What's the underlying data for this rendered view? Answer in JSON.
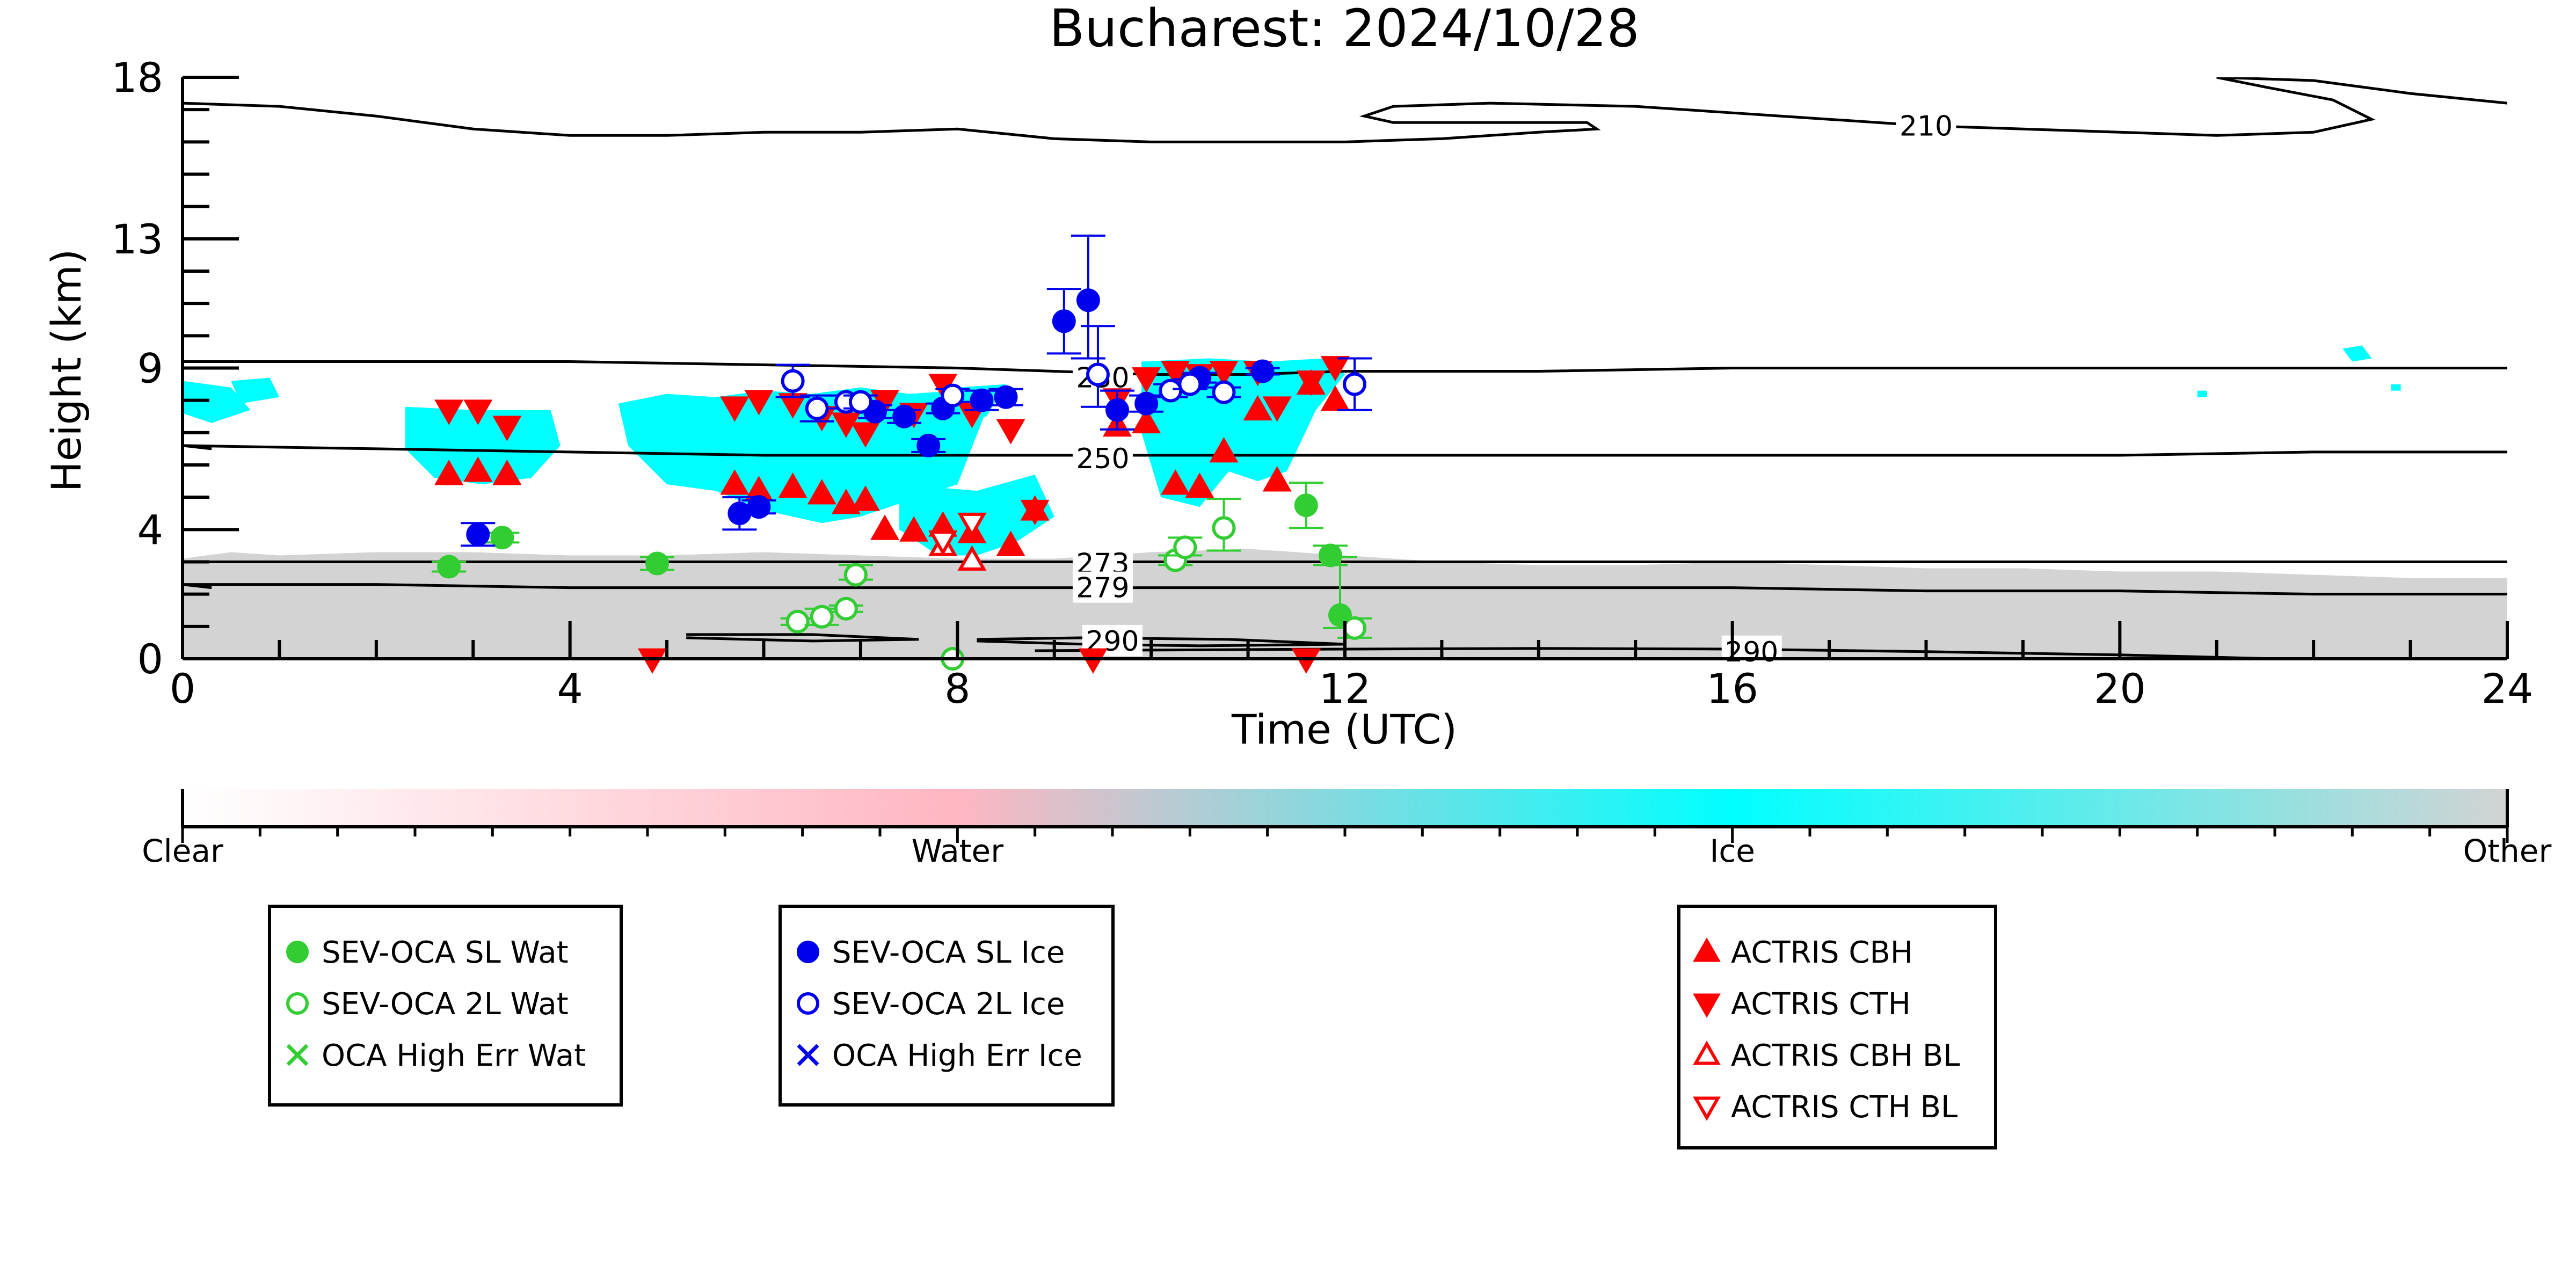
{
  "chart_data": {
    "type": "scatter",
    "title": "Bucharest: 2024/10/28",
    "xlabel": "Time (UTC)",
    "ylabel": "Height (km)",
    "xlim": [
      0,
      24
    ],
    "ylim": [
      0,
      18
    ],
    "x_ticks": [
      0,
      4,
      8,
      12,
      16,
      20,
      24
    ],
    "x_tick_labels": [
      "0",
      "4",
      "8",
      "12",
      "16",
      "20",
      "24"
    ],
    "y_ticks": [
      0,
      4,
      9,
      13,
      18
    ],
    "y_tick_labels": [
      "0",
      "4",
      "9",
      "13",
      "18"
    ],
    "grid": false,
    "colors": {
      "sl_water": "#32cd32",
      "sl_ice": "#0000ee",
      "actris": "#ff0000",
      "ice_mask": "#00ffff",
      "other_mask": "#d3d3d3",
      "contour": "#000000"
    },
    "contours": [
      {
        "label": "210",
        "x": [
          0,
          1,
          2,
          3,
          4,
          5,
          6,
          7,
          8,
          9,
          10,
          11,
          12,
          13,
          14,
          14.6,
          14.5,
          14,
          13,
          12.5,
          12.2,
          12.5,
          13.5,
          15,
          16,
          17,
          18,
          19,
          20,
          21,
          22,
          22.6,
          22.2,
          21.5,
          21,
          22,
          23,
          24
        ],
        "y": [
          17.2,
          17.1,
          16.8,
          16.4,
          16.2,
          16.2,
          16.3,
          16.3,
          16.4,
          16.1,
          16.0,
          16.0,
          16.0,
          16.1,
          16.3,
          16.4,
          16.6,
          16.6,
          16.6,
          16.6,
          16.8,
          17.1,
          17.2,
          17.1,
          16.9,
          16.7,
          16.5,
          16.4,
          16.3,
          16.2,
          16.3,
          16.7,
          17.3,
          17.7,
          18.0,
          17.9,
          17.5,
          17.2
        ]
      },
      {
        "label": "230",
        "x": [
          0,
          2,
          4,
          6,
          8,
          9,
          10,
          11,
          12,
          14,
          16,
          18,
          20,
          22,
          24
        ],
        "y": [
          9.2,
          9.2,
          9.2,
          9.1,
          9.0,
          8.9,
          8.8,
          8.8,
          8.9,
          8.9,
          9.0,
          9.0,
          9.0,
          9.0,
          9.0
        ]
      },
      {
        "label": "250",
        "x": [
          0,
          2,
          4,
          6,
          8,
          9,
          10,
          12,
          14,
          16,
          18,
          20,
          22,
          24
        ],
        "y": [
          6.6,
          6.5,
          6.4,
          6.3,
          6.3,
          6.3,
          6.3,
          6.3,
          6.3,
          6.3,
          6.3,
          6.3,
          6.4,
          6.4
        ]
      },
      {
        "label": "273",
        "x": [
          0,
          2,
          4,
          6,
          8,
          10,
          12,
          14,
          16,
          18,
          20,
          22,
          24
        ],
        "y": [
          3.0,
          3.0,
          3.0,
          3.0,
          3.0,
          3.0,
          3.0,
          3.0,
          3.0,
          3.0,
          3.0,
          3.0,
          3.0
        ]
      },
      {
        "label": "279",
        "x": [
          0,
          2,
          4,
          6,
          8,
          10,
          12,
          14,
          16,
          18,
          20,
          22,
          24
        ],
        "y": [
          2.3,
          2.3,
          2.2,
          2.2,
          2.2,
          2.2,
          2.2,
          2.2,
          2.2,
          2.1,
          2.1,
          2.0,
          2.0
        ]
      },
      {
        "label": "290",
        "x": [
          5.2,
          6.5,
          7.6,
          6.5,
          5.2
        ],
        "y": [
          0.75,
          0.75,
          0.6,
          0.55,
          0.65
        ]
      },
      {
        "label": "290",
        "x": [
          8.2,
          9.3,
          10.8,
          12.0,
          10.5,
          9.3,
          8.2
        ],
        "y": [
          0.6,
          0.65,
          0.6,
          0.45,
          0.4,
          0.45,
          0.55
        ]
      },
      {
        "label": "290",
        "x": [
          8.8,
          12,
          14,
          16,
          18,
          20,
          21.6
        ],
        "y": [
          0.25,
          0.3,
          0.32,
          0.3,
          0.22,
          0.12,
          0.0
        ]
      },
      {
        "label": "",
        "x": [
          0,
          0.3
        ],
        "y": [
          2.3,
          2.2
        ]
      },
      {
        "label": "",
        "x": [
          0,
          0.3
        ],
        "y": [
          6.6,
          6.5
        ]
      }
    ],
    "contour_labels": [
      {
        "text": "210",
        "x": 18.0,
        "y": 16.5
      },
      {
        "text": "230",
        "x": 9.5,
        "y": 8.7
      },
      {
        "text": "250",
        "x": 9.5,
        "y": 6.2
      },
      {
        "text": "273",
        "x": 9.5,
        "y": 2.95
      },
      {
        "text": "279",
        "x": 9.5,
        "y": 2.2
      },
      {
        "text": "290",
        "x": 9.6,
        "y": 0.55
      },
      {
        "text": "290",
        "x": 16.2,
        "y": 0.22
      }
    ],
    "mask_regions": [
      {
        "class": "Other",
        "x": [
          0,
          0.5,
          1,
          2,
          3,
          4,
          5,
          6,
          7,
          8,
          9,
          10,
          11,
          12,
          13,
          14,
          15,
          16,
          17,
          18,
          19,
          20,
          21,
          22,
          23,
          24,
          24,
          0
        ],
        "y": [
          3.1,
          3.3,
          3.2,
          3.3,
          3.3,
          3.2,
          3.2,
          3.3,
          3.2,
          3.1,
          3.1,
          3.3,
          3.4,
          3.2,
          3.0,
          2.9,
          2.9,
          3.0,
          2.9,
          2.8,
          2.8,
          2.7,
          2.7,
          2.6,
          2.5,
          2.5,
          0,
          0
        ]
      },
      {
        "class": "Ice",
        "x": [
          0,
          0.5,
          0.7,
          0.3,
          0
        ],
        "y": [
          8.6,
          8.4,
          7.7,
          7.3,
          7.6
        ]
      },
      {
        "class": "Ice",
        "x": [
          0.5,
          0.9,
          1.0,
          0.6
        ],
        "y": [
          8.6,
          8.7,
          8.1,
          7.9
        ]
      },
      {
        "class": "Ice",
        "x": [
          2.3,
          3.0,
          3.8,
          3.9,
          3.6,
          3.1,
          2.6,
          2.3
        ],
        "y": [
          7.8,
          7.7,
          7.7,
          6.6,
          5.6,
          5.4,
          5.6,
          6.5
        ]
      },
      {
        "class": "Ice",
        "x": [
          4.5,
          5.0,
          5.5,
          6.0,
          6.5,
          7.0,
          7.5,
          8.0,
          8.3,
          8.0,
          7.6,
          7.0,
          6.6,
          6.0,
          5.5,
          5.0,
          4.6
        ],
        "y": [
          7.9,
          8.2,
          8.1,
          8.3,
          8.2,
          8.4,
          8.2,
          8.3,
          7.7,
          5.4,
          5.0,
          4.4,
          4.2,
          4.6,
          5.2,
          5.4,
          6.6
        ]
      },
      {
        "class": "Ice",
        "x": [
          7.4,
          8.2,
          8.8,
          9.0,
          8.6,
          8.2,
          7.8,
          7.4
        ],
        "y": [
          5.4,
          5.2,
          5.7,
          4.4,
          3.6,
          3.2,
          3.2,
          4.0
        ]
      },
      {
        "class": "Ice",
        "x": [
          8.0,
          8.5,
          8.3,
          8.0
        ],
        "y": [
          8.4,
          8.5,
          7.5,
          7.4
        ]
      },
      {
        "class": "Ice",
        "x": [
          9.9,
          10.6,
          11.2,
          11.8,
          12.0,
          11.7,
          11.4,
          11.1,
          10.8,
          10.5,
          10.1,
          9.9
        ],
        "y": [
          9.2,
          9.3,
          9.2,
          9.3,
          8.8,
          7.7,
          5.8,
          5.5,
          5.8,
          4.7,
          5.0,
          7.0
        ]
      },
      {
        "class": "Ice",
        "x": [
          22.3,
          22.5,
          22.6,
          22.4
        ],
        "y": [
          9.6,
          9.7,
          9.3,
          9.2
        ]
      },
      {
        "class": "Ice",
        "x": [
          20.8,
          20.9,
          20.9,
          20.8
        ],
        "y": [
          8.3,
          8.3,
          8.1,
          8.1
        ]
      },
      {
        "class": "Ice",
        "x": [
          22.8,
          22.9,
          22.9,
          22.8
        ],
        "y": [
          8.5,
          8.5,
          8.3,
          8.3
        ]
      }
    ],
    "series": [
      {
        "name": "SEV-OCA SL Wat",
        "marker": "filled-circle",
        "color": "#32cd32",
        "x": [
          2.75,
          3.3,
          4.9,
          11.6,
          11.85,
          11.95
        ],
        "y": [
          2.85,
          3.75,
          2.95,
          4.75,
          3.2,
          1.35
        ],
        "err_low": [
          0.15,
          0.15,
          0.2,
          0.7,
          0.3,
          0.4
        ],
        "err_high": [
          0.15,
          0.15,
          0.2,
          0.7,
          0.3,
          1.8
        ]
      },
      {
        "name": "SEV-OCA 2L Wat",
        "marker": "open-circle",
        "color": "#32cd32",
        "x": [
          6.35,
          6.6,
          6.85,
          6.95,
          7.95,
          10.25,
          10.35,
          10.75,
          12.1
        ],
        "y": [
          1.15,
          1.3,
          1.55,
          2.6,
          0.0,
          3.05,
          3.45,
          4.05,
          0.95
        ],
        "err_low": [
          0.1,
          0.25,
          0.1,
          0.15,
          0,
          0.15,
          0.25,
          0.7,
          0.3
        ],
        "err_high": [
          0.1,
          0.25,
          0.1,
          0.3,
          0,
          0.15,
          0.3,
          0.9,
          0.3
        ]
      },
      {
        "name": "SEV-OCA SL Ice",
        "marker": "filled-circle",
        "color": "#0000ee",
        "x": [
          3.05,
          5.75,
          5.95,
          7.15,
          7.45,
          7.7,
          7.85,
          8.25,
          8.5,
          9.1,
          9.35,
          9.65,
          9.95,
          10.5,
          11.15
        ],
        "y": [
          3.85,
          4.5,
          4.7,
          7.65,
          7.5,
          6.6,
          7.75,
          8.0,
          8.1,
          10.45,
          11.1,
          7.7,
          7.9,
          8.7,
          8.9
        ],
        "err_low": [
          0.35,
          0.5,
          0.2,
          0.2,
          0.2,
          0.2,
          0.15,
          0.3,
          0.25,
          1.0,
          1.8,
          0.6,
          0.25,
          0.15,
          0.1
        ],
        "err_high": [
          0.35,
          0.5,
          0.2,
          0.2,
          0.2,
          0.2,
          0.15,
          0.3,
          0.25,
          1.0,
          2.0,
          0.6,
          0.25,
          0.15,
          0.1
        ]
      },
      {
        "name": "SEV-OCA 2L Ice",
        "marker": "open-circle",
        "color": "#0000ee",
        "x": [
          6.3,
          6.55,
          6.85,
          7.0,
          7.95,
          9.45,
          10.2,
          10.4,
          10.75,
          12.1
        ],
        "y": [
          8.6,
          7.75,
          7.95,
          7.95,
          8.15,
          8.8,
          8.3,
          8.5,
          8.25,
          8.5
        ],
        "err_low": [
          0.5,
          0.4,
          0.2,
          0.2,
          0.2,
          1.0,
          0.2,
          0.15,
          0.15,
          0.8
        ],
        "err_high": [
          0.5,
          0.4,
          0.2,
          0.2,
          0.2,
          1.5,
          0.2,
          0.15,
          0.15,
          0.8
        ]
      },
      {
        "name": "OCA High Err Wat",
        "marker": "x",
        "color": "#32cd32",
        "x": [],
        "y": []
      },
      {
        "name": "OCA High Err Ice",
        "marker": "x",
        "color": "#0000ee",
        "x": [],
        "y": []
      },
      {
        "name": "ACTRIS CBH",
        "marker": "filled-triangle-up",
        "color": "#ff0000",
        "x": [
          2.75,
          3.05,
          3.35,
          5.7,
          5.95,
          6.3,
          6.6,
          6.85,
          7.05,
          7.25,
          7.55,
          7.85,
          8.15,
          8.55,
          8.8,
          9.65,
          9.95,
          10.25,
          10.5,
          10.75,
          11.1,
          11.3,
          11.65,
          11.9
        ],
        "y": [
          5.7,
          5.8,
          5.7,
          5.4,
          5.2,
          5.3,
          5.1,
          4.8,
          4.9,
          4.0,
          3.95,
          4.1,
          3.9,
          3.5,
          4.6,
          7.2,
          7.3,
          5.4,
          5.3,
          6.4,
          7.7,
          5.5,
          8.5,
          8.0
        ],
        "err_low": [],
        "err_high": []
      },
      {
        "name": "ACTRIS CTH",
        "marker": "filled-triangle-down",
        "color": "#ff0000",
        "x": [
          2.75,
          3.05,
          3.35,
          5.7,
          5.95,
          6.3,
          6.6,
          6.85,
          7.05,
          7.25,
          7.55,
          7.85,
          8.15,
          8.55,
          8.8,
          9.65,
          9.95,
          10.25,
          10.5,
          10.75,
          11.1,
          11.3,
          11.65,
          11.9,
          4.85,
          9.4,
          11.6
        ],
        "y": [
          7.7,
          7.7,
          7.2,
          7.8,
          8.0,
          7.9,
          7.5,
          7.3,
          7.0,
          8.0,
          7.6,
          8.5,
          7.6,
          7.1,
          4.6,
          8.05,
          8.7,
          8.9,
          8.8,
          8.9,
          8.9,
          7.8,
          8.6,
          9.05,
          0.0,
          0.0,
          0.0
        ],
        "err_low": [],
        "err_high": []
      },
      {
        "name": "ACTRIS CBH BL",
        "marker": "open-triangle-up",
        "color": "#ff0000",
        "x": [
          7.85,
          8.15
        ],
        "y": [
          3.5,
          3.05
        ],
        "err_low": [],
        "err_high": []
      },
      {
        "name": "ACTRIS CTH BL",
        "marker": "open-triangle-down",
        "color": "#ff0000",
        "x": [
          7.85,
          8.15
        ],
        "y": [
          3.65,
          4.2
        ],
        "err_low": [],
        "err_high": []
      }
    ],
    "colorbar": {
      "labels": [
        "Clear",
        "Water",
        "Ice",
        "Other"
      ],
      "colors": [
        "#ffffff",
        "#ffb6c1",
        "#00ffff",
        "#d3d3d3"
      ]
    },
    "legends": [
      {
        "entries": [
          0,
          1,
          4
        ]
      },
      {
        "entries": [
          2,
          3,
          5
        ]
      },
      {
        "entries": [
          6,
          7,
          8,
          9
        ]
      }
    ]
  }
}
